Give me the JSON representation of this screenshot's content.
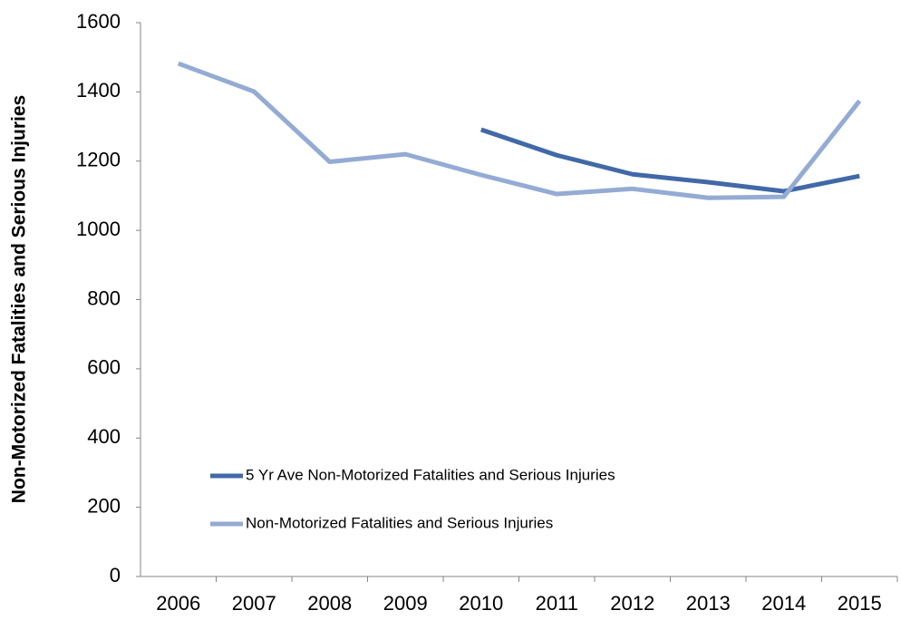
{
  "chart_data": {
    "type": "line",
    "y_label": "Non-Motorized Fatalities and Serious Injuries",
    "categories": [
      "2006",
      "2007",
      "2008",
      "2009",
      "2010",
      "2011",
      "2012",
      "2013",
      "2014",
      "2015"
    ],
    "series": [
      {
        "name": "5 Yr Ave Non-Motorized Fatalities and Serious Injuries",
        "color": "#4169a8",
        "values": [
          null,
          null,
          null,
          null,
          1291,
          1217,
          1162,
          1139,
          1113,
          1157
        ]
      },
      {
        "name": "Non-Motorized Fatalities and Serious Injuries",
        "color": "#94abd4",
        "values": [
          1482,
          1401,
          1198,
          1220,
          1160,
          1105,
          1120,
          1094,
          1097,
          1374
        ]
      }
    ],
    "ylim": [
      0,
      1600
    ],
    "yticks": [
      0,
      200,
      400,
      600,
      800,
      1000,
      1200,
      1400,
      1600
    ],
    "grid": false
  }
}
